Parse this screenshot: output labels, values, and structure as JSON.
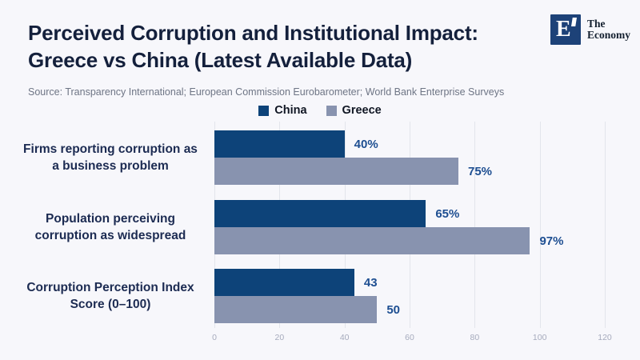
{
  "header": {
    "title_line1": "Perceived Corruption and Institutional Impact:",
    "title_line2": "Greece vs China (Latest Available Data)",
    "source": "Source: Transparency International; European Commission Eurobarometer; World Bank Enterprise Surveys",
    "logo": {
      "mark": "E",
      "name_line1": "The",
      "name_line2": "Economy"
    }
  },
  "chart_data": {
    "type": "bar",
    "orientation": "horizontal",
    "title": "Perceived Corruption and Institutional Impact: Greece vs China (Latest Available Data)",
    "categories": [
      {
        "lines": [
          "Firms reporting corruption as",
          "a business problem"
        ]
      },
      {
        "lines": [
          "Population perceiving",
          "corruption as widespread"
        ]
      },
      {
        "lines": [
          "Corruption Perception Index",
          "Score (0–100)"
        ]
      }
    ],
    "series": [
      {
        "name": "China",
        "color": "#0D4379",
        "values": [
          40,
          65,
          43
        ],
        "labels": [
          "40%",
          "65%",
          "43"
        ]
      },
      {
        "name": "Greece",
        "color": "#8893AF",
        "values": [
          75,
          97,
          50
        ],
        "labels": [
          "75%",
          "97%",
          "50"
        ]
      }
    ],
    "x_ticks": [
      0,
      20,
      40,
      60,
      80,
      100,
      120
    ],
    "xlim": [
      0,
      120
    ],
    "grid": true,
    "legend_position": "top-center"
  },
  "colors": {
    "bg": "#F7F7FB",
    "title_text": "#14203C",
    "source_text": "#6E7585",
    "china": "#0D4379",
    "greece": "#8893AF",
    "value_label": "#1D4E91",
    "category_label": "#1C2B52",
    "gridline": "#E3E5EC",
    "tick_label": "#A6ABBD",
    "legend_text": "#101623",
    "logo_box": "#1D4278",
    "logo_text": "#14202F"
  }
}
